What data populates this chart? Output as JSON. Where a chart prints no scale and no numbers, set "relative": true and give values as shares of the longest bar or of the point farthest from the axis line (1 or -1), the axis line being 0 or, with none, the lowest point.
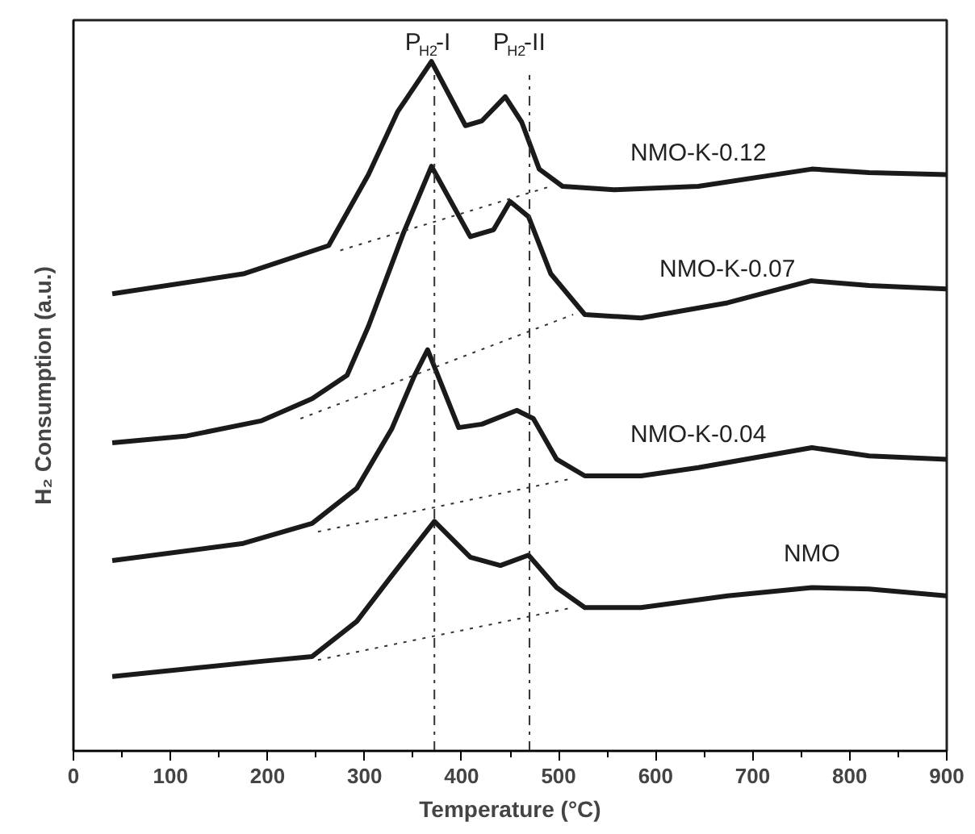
{
  "chart_data": {
    "type": "line",
    "relative": true,
    "xlabel": "Temperature (°C)",
    "ylabel": "H₂ Consumption (a.u.)",
    "xlim": [
      0,
      900
    ],
    "xticks": [
      0,
      100,
      200,
      300,
      400,
      500,
      600,
      700,
      800,
      900
    ],
    "tick_labels": "x",
    "series": [
      {
        "name": "NMO-K-0.12",
        "color": "#1a1a1a",
        "x": [
          40,
          175,
          263,
          304,
          334,
          369,
          404,
          421,
          445,
          462,
          480,
          504,
          557,
          644,
          761,
          820,
          900
        ],
        "values": [
          0.663,
          0.692,
          0.733,
          0.836,
          0.927,
          1.0,
          0.907,
          0.914,
          0.949,
          0.912,
          0.844,
          0.819,
          0.814,
          0.819,
          0.844,
          0.839,
          0.836
        ]
      },
      {
        "name": "NMO-K-0.07",
        "color": "#1a1a1a",
        "x": [
          40,
          117,
          194,
          246,
          282,
          304,
          340,
          369,
          409,
          433,
          450,
          469,
          492,
          527,
          585,
          674,
          760,
          820,
          900
        ],
        "values": [
          0.447,
          0.457,
          0.479,
          0.511,
          0.545,
          0.616,
          0.751,
          0.848,
          0.746,
          0.756,
          0.797,
          0.775,
          0.692,
          0.633,
          0.628,
          0.65,
          0.682,
          0.675,
          0.67
        ]
      },
      {
        "name": "NMO-K-0.04",
        "color": "#1a1a1a",
        "x": [
          40,
          175,
          246,
          292,
          328,
          351,
          365,
          397,
          421,
          457,
          474,
          498,
          527,
          585,
          644,
          761,
          820,
          900
        ],
        "values": [
          0.276,
          0.301,
          0.33,
          0.381,
          0.467,
          0.543,
          0.582,
          0.469,
          0.474,
          0.494,
          0.482,
          0.423,
          0.399,
          0.399,
          0.411,
          0.44,
          0.428,
          0.423
        ]
      },
      {
        "name": "NMO",
        "color": "#1a1a1a",
        "x": [
          40,
          194,
          246,
          292,
          328,
          372,
          409,
          440,
          469,
          498,
          527,
          585,
          674,
          761,
          820,
          900
        ],
        "values": [
          0.108,
          0.13,
          0.137,
          0.188,
          0.254,
          0.333,
          0.281,
          0.269,
          0.284,
          0.237,
          0.208,
          0.208,
          0.225,
          0.237,
          0.235,
          0.225
        ]
      },
      {
        "color": "#333333",
        "line_style": "dotted",
        "x": [
          275,
          492
        ],
        "values": [
          0.726,
          0.819
        ]
      },
      {
        "color": "#333333",
        "line_style": "dotted",
        "x": [
          234,
          515
        ],
        "values": [
          0.482,
          0.633
        ]
      },
      {
        "color": "#333333",
        "line_style": "dotted",
        "x": [
          252,
          510
        ],
        "values": [
          0.318,
          0.394
        ]
      },
      {
        "color": "#333333",
        "line_style": "dotted",
        "x": [
          252,
          515
        ],
        "values": [
          0.132,
          0.208
        ]
      }
    ],
    "ref_lines": [
      {
        "axis": "x",
        "value": 372,
        "label": "P$_{H2}$-I",
        "line_style": "dashdot",
        "color": "#333333"
      },
      {
        "axis": "x",
        "value": 470,
        "label": "P$_{H2}$-II",
        "line_style": "dashdot",
        "color": "#333333"
      }
    ]
  }
}
